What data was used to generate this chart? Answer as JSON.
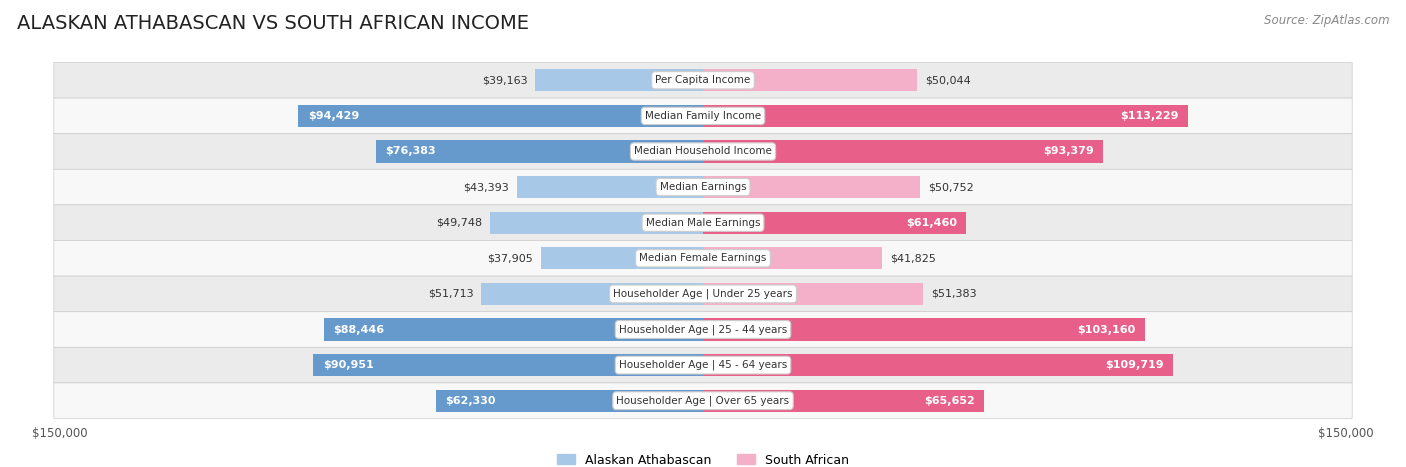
{
  "title": "ALASKAN ATHABASCAN VS SOUTH AFRICAN INCOME",
  "source": "Source: ZipAtlas.com",
  "categories": [
    "Per Capita Income",
    "Median Family Income",
    "Median Household Income",
    "Median Earnings",
    "Median Male Earnings",
    "Median Female Earnings",
    "Householder Age | Under 25 years",
    "Householder Age | 25 - 44 years",
    "Householder Age | 45 - 64 years",
    "Householder Age | Over 65 years"
  ],
  "alaskan_values": [
    39163,
    94429,
    76383,
    43393,
    49748,
    37905,
    51713,
    88446,
    90951,
    62330
  ],
  "southafrican_values": [
    50044,
    113229,
    93379,
    50752,
    61460,
    41825,
    51383,
    103160,
    109719,
    65652
  ],
  "alaskan_color_light": "#a8c8e8",
  "alaskan_color_dark": "#6699cc",
  "southafrican_color_light": "#f4b0c8",
  "southafrican_color_dark": "#e8608a",
  "inside_threshold": 0.38,
  "max_value": 150000,
  "background_color": "#ffffff",
  "row_bg_odd": "#ebebeb",
  "row_bg_even": "#f8f8f8",
  "title_fontsize": 14,
  "source_fontsize": 8.5,
  "bar_label_fontsize": 8,
  "category_fontsize": 7.5,
  "axis_label_fontsize": 8.5,
  "legend_fontsize": 9
}
